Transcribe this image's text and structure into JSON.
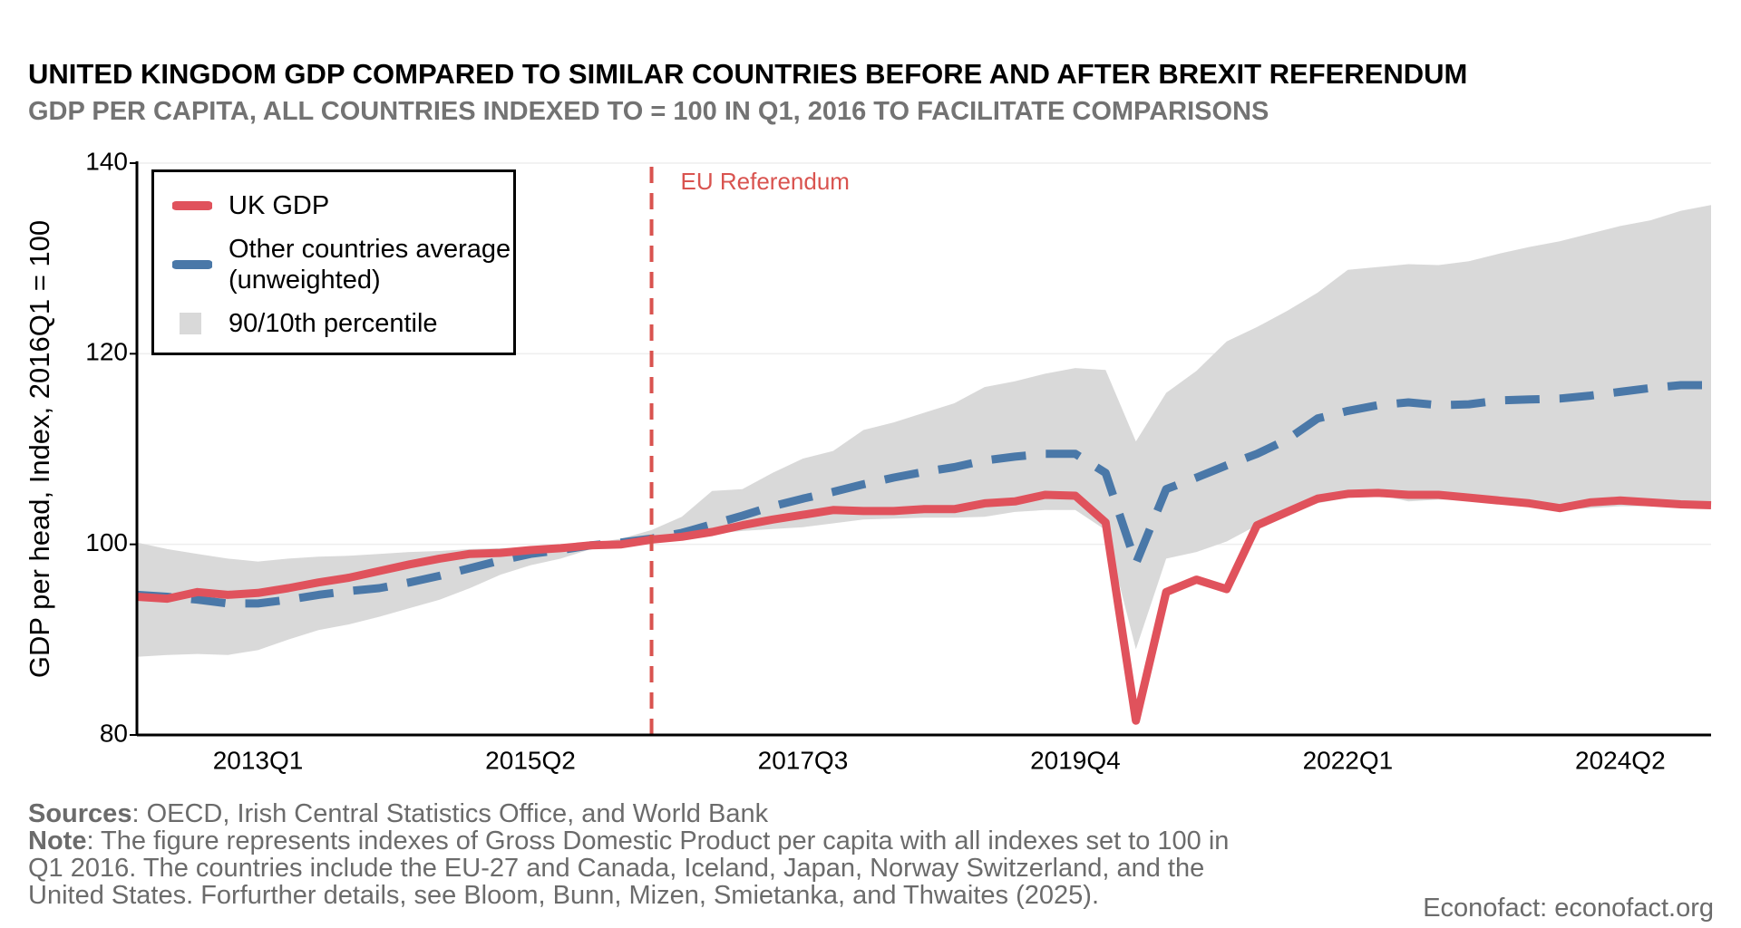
{
  "chart_data": {
    "type": "line",
    "title": "UNITED KINGDOM GDP COMPARED TO SIMILAR COUNTRIES BEFORE AND AFTER BREXIT REFERENDUM",
    "subtitle": "GDP PER CAPITA, ALL COUNTRIES INDEXED TO = 100 IN Q1, 2016 TO FACILITATE COMPARISONS",
    "y_label": "GDP per head, Index, 2016Q1 = 100",
    "categories": [
      null,
      null,
      null,
      null,
      "2013Q1",
      null,
      null,
      null,
      null,
      null,
      null,
      null,
      null,
      "2015Q2",
      null,
      null,
      null,
      null,
      null,
      null,
      null,
      null,
      "2017Q3",
      null,
      null,
      null,
      null,
      null,
      null,
      null,
      null,
      "2019Q4",
      null,
      null,
      null,
      null,
      null,
      null,
      null,
      null,
      "2022Q1",
      null,
      null,
      null,
      null,
      null,
      null,
      null,
      null,
      "2024Q2",
      null,
      null,
      null
    ],
    "ylim": [
      80,
      140
    ],
    "yticks": [
      80,
      100,
      120,
      140
    ],
    "grid": true,
    "legend": "upper left",
    "annotation": {
      "index": 17,
      "label": "EU Referendum",
      "color": "#d9534f"
    },
    "series": [
      {
        "name": "UK GDP",
        "color": "#e0525c",
        "style": "solid",
        "values": [
          94.5,
          94.3,
          95.0,
          94.7,
          94.9,
          95.4,
          96.0,
          96.5,
          97.2,
          97.9,
          98.5,
          99.0,
          99.1,
          99.4,
          99.6,
          99.9,
          100.0,
          100.5,
          100.8,
          101.3,
          102.0,
          102.6,
          103.1,
          103.6,
          103.5,
          103.5,
          103.7,
          103.7,
          104.3,
          104.5,
          105.2,
          105.1,
          102.3,
          81.5,
          95.0,
          96.3,
          95.3,
          102.0,
          103.4,
          104.8,
          105.3,
          105.4,
          105.2,
          105.2,
          104.9,
          104.6,
          104.3,
          103.8,
          104.4,
          104.6,
          104.4,
          104.2,
          104.1
        ]
      },
      {
        "name": "Other countries average (unweighted)",
        "color": "#4a78a8",
        "style": "dashed",
        "values": [
          94.7,
          94.5,
          94.2,
          93.8,
          93.8,
          94.2,
          94.7,
          95.1,
          95.4,
          96.0,
          96.7,
          97.5,
          98.3,
          99.0,
          99.4,
          99.9,
          100.2,
          100.6,
          101.2,
          102.1,
          103.0,
          104.0,
          104.8,
          105.5,
          106.3,
          107.0,
          107.6,
          108.1,
          108.8,
          109.2,
          109.5,
          109.5,
          107.5,
          98.0,
          105.8,
          107.0,
          108.3,
          109.5,
          111.0,
          113.2,
          114.0,
          114.6,
          114.9,
          114.6,
          114.7,
          115.1,
          115.2,
          115.3,
          115.6,
          116.0,
          116.4,
          116.7,
          116.7
        ]
      },
      {
        "name": "90/10th percentile",
        "color": "#d9d9d9",
        "style": "band",
        "upper": [
          100.2,
          99.5,
          99.0,
          98.5,
          98.2,
          98.5,
          98.7,
          98.8,
          99.0,
          99.2,
          99.3,
          99.5,
          99.6,
          99.7,
          99.9,
          100.1,
          100.6,
          101.5,
          102.9,
          105.6,
          105.8,
          107.5,
          109.0,
          109.8,
          112.0,
          112.8,
          113.8,
          114.8,
          116.5,
          117.1,
          117.9,
          118.5,
          118.3,
          110.8,
          115.9,
          118.2,
          121.3,
          122.8,
          124.5,
          126.4,
          128.8,
          129.1,
          129.4,
          129.3,
          129.7,
          130.5,
          131.2,
          131.8,
          132.6,
          133.4,
          134.0,
          135.0,
          135.6
        ],
        "lower": [
          88.2,
          88.4,
          88.5,
          88.4,
          88.9,
          90.0,
          91.0,
          91.6,
          92.4,
          93.3,
          94.2,
          95.4,
          96.8,
          97.8,
          98.5,
          99.5,
          100.0,
          100.4,
          100.8,
          101.1,
          101.4,
          101.6,
          101.8,
          102.2,
          102.6,
          102.7,
          102.8,
          102.8,
          102.9,
          103.4,
          103.6,
          103.6,
          101.5,
          89.0,
          98.5,
          99.2,
          100.3,
          102.0,
          103.2,
          104.3,
          104.9,
          105.2,
          104.5,
          104.7,
          104.6,
          104.2,
          104.0,
          103.6,
          103.8,
          104.0,
          104.0,
          103.9,
          103.9
        ]
      }
    ],
    "footer": {
      "sources_label": "Sources",
      "sources": ": OECD, Irish Central Statistics Office, and World Bank",
      "note_label": "Note",
      "note": ": The figure represents indexes of Gross Domestic Product per capita with all indexes set to 100 in Q1 2016. The countries include the EU-27 and Canada, Iceland, Japan, Norway Switzerland, and the United States. Forfurther details, see Bloom, Bunn, Mizen, Smietanka, and Thwaites (2025).",
      "credit": "Econofact: econofact.org"
    }
  }
}
